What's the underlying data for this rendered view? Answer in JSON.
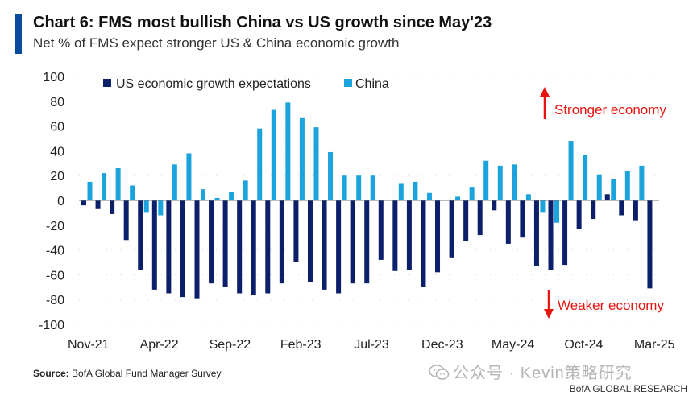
{
  "header": {
    "title": "Chart 6: FMS most bullish China vs US growth since May'23",
    "subtitle": "Net % of FMS expect stronger US & China economic growth"
  },
  "footer": {
    "source_label": "Source:",
    "source_text": "BofA Global Fund Manager Survey",
    "watermark": "公众号 · Kevin策略研究",
    "credit": "BofA GLOBAL RESEARCH"
  },
  "colors": {
    "us": "#0c1f6b",
    "china": "#1aa3dc",
    "arrow": "#e8140e",
    "accent": "#0a4a9e"
  },
  "chart_data": {
    "type": "bar",
    "ylim": [
      -100,
      100
    ],
    "yticks": [
      100,
      80,
      60,
      40,
      20,
      0,
      -20,
      -40,
      -60,
      -80,
      -100
    ],
    "xtick_labels": [
      "Nov-21",
      "Apr-22",
      "Sep-22",
      "Feb-23",
      "Jul-23",
      "Dec-23",
      "May-24",
      "Oct-24",
      "Mar-25"
    ],
    "xtick_index": [
      0,
      5,
      10,
      15,
      20,
      25,
      30,
      35,
      40
    ],
    "categories": [
      "Nov-21",
      "Dec-21",
      "Jan-22",
      "Feb-22",
      "Mar-22",
      "Apr-22",
      "May-22",
      "Jun-22",
      "Jul-22",
      "Aug-22",
      "Sep-22",
      "Oct-22",
      "Nov-22",
      "Dec-22",
      "Jan-23",
      "Feb-23",
      "Mar-23",
      "Apr-23",
      "May-23",
      "Jun-23",
      "Jul-23",
      "Aug-23",
      "Sep-23",
      "Oct-23",
      "Nov-23",
      "Dec-23",
      "Jan-24",
      "Feb-24",
      "Mar-24",
      "Apr-24",
      "May-24",
      "Jun-24",
      "Jul-24",
      "Aug-24",
      "Sep-24",
      "Oct-24",
      "Nov-24",
      "Dec-24",
      "Jan-25",
      "Feb-25",
      "Mar-25"
    ],
    "series": [
      {
        "name": "US economic growth expectations",
        "values": [
          -4,
          -7,
          -11,
          -32,
          -56,
          -72,
          -75,
          -78,
          -79,
          -67,
          -70,
          -75,
          -76,
          -75,
          -67,
          -50,
          -66,
          -72,
          -75,
          -67,
          -67,
          -48,
          -57,
          -56,
          -70,
          -58,
          -46,
          -33,
          -28,
          -8,
          -35,
          -30,
          -53,
          -56,
          -52,
          -23,
          -15,
          5,
          -12,
          -16,
          -71
        ]
      },
      {
        "name": "China",
        "values": [
          15,
          22,
          26,
          12,
          -10,
          -12,
          29,
          38,
          9,
          2,
          7,
          16,
          58,
          73,
          79,
          67,
          59,
          39,
          20,
          20,
          20,
          0,
          14,
          15,
          6,
          0,
          3,
          11,
          32,
          28,
          29,
          5,
          -10,
          -18,
          48,
          37,
          21,
          17,
          24,
          28,
          0
        ]
      }
    ],
    "annotations": {
      "up": "Stronger economy",
      "down": "Weaker economy"
    }
  }
}
